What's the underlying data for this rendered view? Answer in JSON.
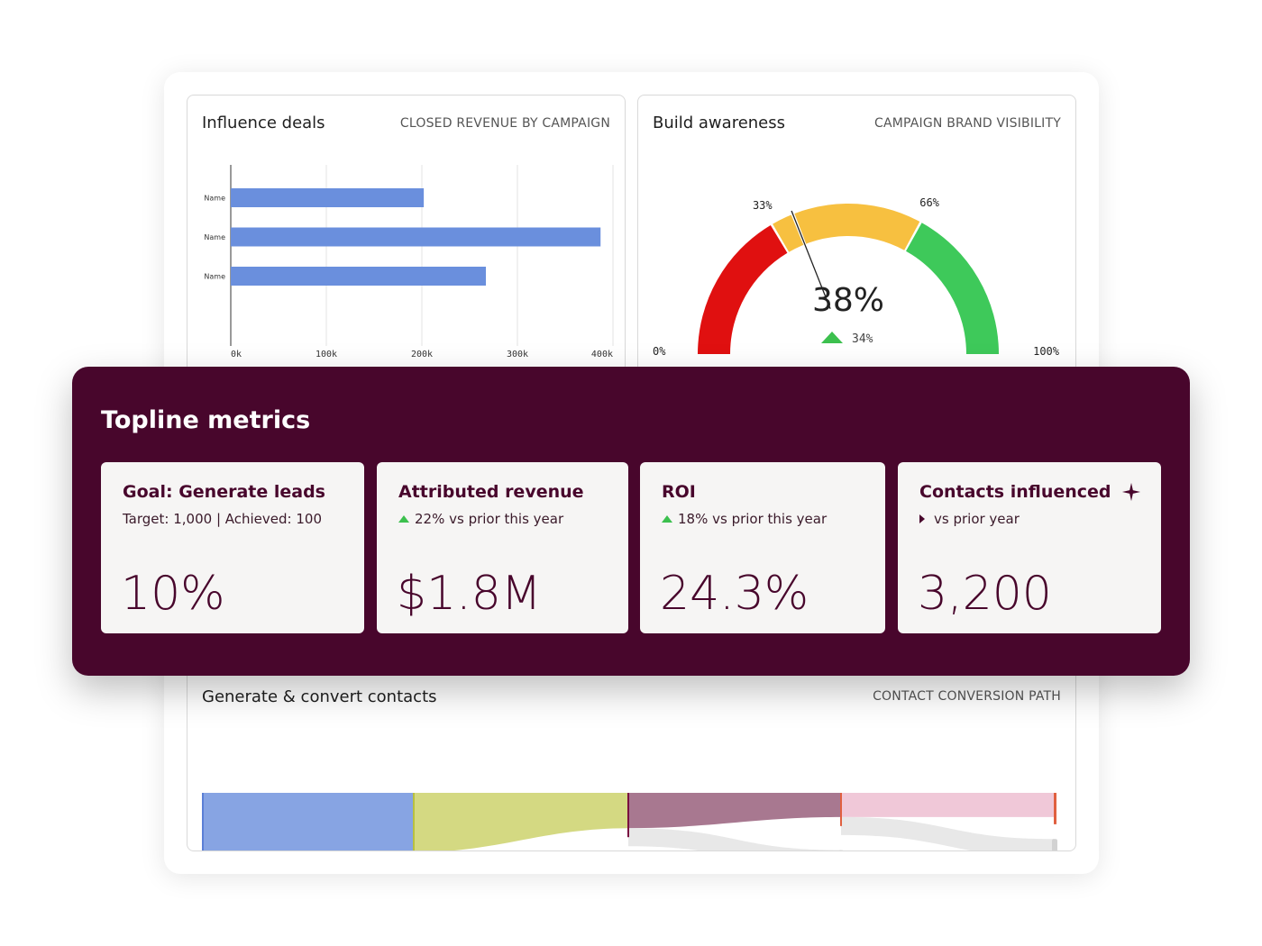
{
  "influence": {
    "title": "Influence deals",
    "subtitle": "CLOSED REVENUE BY CAMPAIGN"
  },
  "awareness": {
    "title": "Build awareness",
    "subtitle": "CAMPAIGN BRAND VISIBILITY"
  },
  "conversion": {
    "title": "Generate & convert contacts",
    "subtitle": "CONTACT CONVERSION PATH"
  },
  "topline": {
    "title": "Topline metrics",
    "metrics": [
      {
        "title": "Goal: Generate leads",
        "sub": "Target: 1,000 | Achieved: 100",
        "value": "10%"
      },
      {
        "title": "Attributed revenue",
        "sub": "22% vs prior this year",
        "value": "$1.8M",
        "trend": "up"
      },
      {
        "title": "ROI",
        "sub": "18% vs prior this year",
        "value": "24.3%",
        "trend": "up"
      },
      {
        "title": "Contacts influenced",
        "sub": "vs prior year",
        "value": "3,200",
        "trend": "flat",
        "icon": "sparkle-icon"
      }
    ]
  },
  "colors": {
    "accent": "#48062c",
    "bar": "#6a8fdd",
    "gauge_red": "#e01010",
    "gauge_yellow": "#f7c040",
    "gauge_green": "#3ec95a",
    "trend_up": "#3cc04e"
  },
  "chart_data": [
    {
      "type": "bar",
      "orientation": "horizontal",
      "categories": [
        "Name",
        "Name",
        "Name"
      ],
      "values": [
        202000,
        387000,
        267000
      ],
      "xlim": [
        0,
        400000
      ],
      "xticks": [
        "0k",
        "100k",
        "200k",
        "300k",
        "400k"
      ],
      "grid": true
    },
    {
      "type": "gauge",
      "value": 38,
      "value_label": "38%",
      "delta_label": "34%",
      "delta_direction": "up",
      "range": [
        0,
        100
      ],
      "min_label": "0%",
      "max_label": "100%",
      "thresholds": [
        33,
        66
      ],
      "threshold_labels": [
        "33%",
        "66%"
      ],
      "bands": [
        {
          "from": 0,
          "to": 33,
          "color": "#e01010"
        },
        {
          "from": 33,
          "to": 66,
          "color": "#f7c040"
        },
        {
          "from": 66,
          "to": 100,
          "color": "#3ec95a"
        }
      ]
    },
    {
      "type": "sankey",
      "stages": [
        {
          "color": "#87a4e3",
          "edge": "#5b7fd6",
          "retained": 0.78
        },
        {
          "color": "#d4d982",
          "edge": "#b8c040",
          "retained": 0.59
        },
        {
          "color": "#a87890",
          "edge": "#7a1040",
          "retained": 0.35
        },
        {
          "color": "#f0c8d8",
          "edge": "#e06040",
          "retained": 0.24
        }
      ]
    }
  ]
}
